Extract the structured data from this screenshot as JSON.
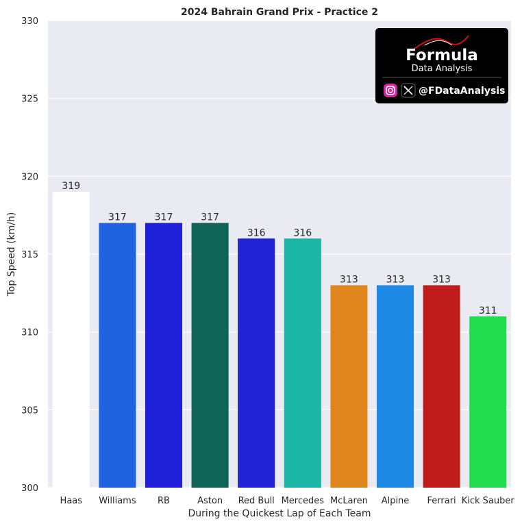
{
  "chart_data": {
    "type": "bar",
    "title": "2024 Bahrain Grand Prix - Practice 2",
    "xlabel": "During the Quickest Lap of Each Team",
    "ylabel": "Top Speed (km/h)",
    "ylim": [
      300,
      330
    ],
    "yticks": [
      300,
      305,
      310,
      315,
      320,
      325,
      330
    ],
    "grid": true,
    "categories": [
      "Haas",
      "Williams",
      "RB",
      "Aston",
      "Red Bull",
      "Mercedes",
      "McLaren",
      "Alpine",
      "Ferrari",
      "Kick Sauber"
    ],
    "values": [
      319,
      317,
      317,
      317,
      316,
      316,
      313,
      313,
      313,
      311
    ],
    "colors": [
      "#ffffff",
      "#1f63e0",
      "#2020d8",
      "#0f6458",
      "#2121d6",
      "#1bb6a6",
      "#e0861e",
      "#1e88e5",
      "#c01c1c",
      "#22dd4f"
    ]
  },
  "logo": {
    "brand": "Formula",
    "tagline": "Data Analysis",
    "handle": "@FDataAnalysis",
    "icons": [
      "instagram-icon",
      "x-icon"
    ],
    "background": "#000000"
  },
  "colors": {
    "plot_background": "#eaeaf2",
    "grid": "#ffffff",
    "text": "#262626"
  }
}
